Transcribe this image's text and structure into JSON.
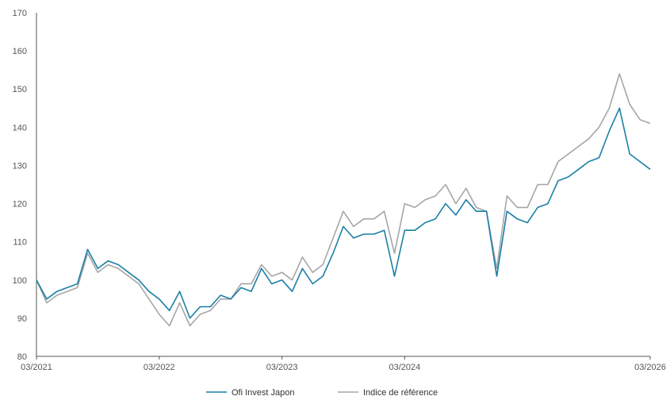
{
  "chart_data": {
    "type": "line",
    "title": "",
    "xlabel": "",
    "ylabel": "",
    "ylim": [
      80,
      170
    ],
    "yticks": [
      80,
      90,
      100,
      110,
      120,
      130,
      140,
      150,
      160,
      170
    ],
    "xticks": [
      "03/2021",
      "03/2022",
      "03/2023",
      "03/2024",
      "03/2026"
    ],
    "xlim": [
      "2021-03",
      "2026-03"
    ],
    "grid": false,
    "legend_position": "bottom",
    "colors": {
      "fund": "#1a7fa6",
      "benchmark": "#a6a6a6",
      "axis": "#555555"
    },
    "series": [
      {
        "name": "Ofi Invest Japon",
        "x": [
          "2021-03",
          "2021-04",
          "2021-05",
          "2021-06",
          "2021-07",
          "2021-08",
          "2021-09",
          "2021-10",
          "2021-11",
          "2021-12",
          "2022-01",
          "2022-02",
          "2022-03",
          "2022-04",
          "2022-05",
          "2022-06",
          "2022-07",
          "2022-08",
          "2022-09",
          "2022-10",
          "2022-11",
          "2022-12",
          "2023-01",
          "2023-02",
          "2023-03",
          "2023-04",
          "2023-05",
          "2023-06",
          "2023-07",
          "2023-08",
          "2023-09",
          "2023-10",
          "2023-11",
          "2023-12",
          "2024-01",
          "2024-02",
          "2024-03",
          "2024-04",
          "2024-05",
          "2024-06",
          "2024-07",
          "2024-08",
          "2024-09",
          "2024-10",
          "2024-11",
          "2024-12",
          "2025-01",
          "2025-02",
          "2025-03",
          "2025-04",
          "2025-05",
          "2025-06",
          "2025-07",
          "2025-08",
          "2025-09",
          "2025-10",
          "2025-11",
          "2025-12",
          "2026-01",
          "2026-02",
          "2026-03"
        ],
        "values": [
          100,
          95,
          97,
          98,
          99,
          108,
          103,
          105,
          104,
          102,
          100,
          97,
          95,
          92,
          97,
          90,
          93,
          93,
          96,
          95,
          98,
          97,
          103,
          99,
          100,
          97,
          103,
          99,
          101,
          107,
          114,
          111,
          112,
          112,
          113,
          101,
          113,
          113,
          115,
          116,
          120,
          117,
          121,
          118,
          118,
          101,
          118,
          116,
          115,
          119,
          120,
          126,
          127,
          129,
          131,
          132,
          139,
          145,
          133,
          131,
          129
        ]
      },
      {
        "name": "Indice de référence",
        "x": [
          "2021-03",
          "2021-04",
          "2021-05",
          "2021-06",
          "2021-07",
          "2021-08",
          "2021-09",
          "2021-10",
          "2021-11",
          "2021-12",
          "2022-01",
          "2022-02",
          "2022-03",
          "2022-04",
          "2022-05",
          "2022-06",
          "2022-07",
          "2022-08",
          "2022-09",
          "2022-10",
          "2022-11",
          "2022-12",
          "2023-01",
          "2023-02",
          "2023-03",
          "2023-04",
          "2023-05",
          "2023-06",
          "2023-07",
          "2023-08",
          "2023-09",
          "2023-10",
          "2023-11",
          "2023-12",
          "2024-01",
          "2024-02",
          "2024-03",
          "2024-04",
          "2024-05",
          "2024-06",
          "2024-07",
          "2024-08",
          "2024-09",
          "2024-10",
          "2024-11",
          "2024-12",
          "2025-01",
          "2025-02",
          "2025-03",
          "2025-04",
          "2025-05",
          "2025-06",
          "2025-07",
          "2025-08",
          "2025-09",
          "2025-10",
          "2025-11",
          "2025-12",
          "2026-01",
          "2026-02",
          "2026-03"
        ],
        "values": [
          100,
          94,
          96,
          97,
          98,
          107,
          102,
          104,
          103,
          101,
          99,
          95,
          91,
          88,
          94,
          88,
          91,
          92,
          95,
          95,
          99,
          99,
          104,
          101,
          102,
          100,
          106,
          102,
          104,
          111,
          118,
          114,
          116,
          116,
          118,
          107,
          120,
          119,
          121,
          122,
          125,
          120,
          124,
          119,
          118,
          103,
          122,
          119,
          119,
          125,
          125,
          131,
          133,
          135,
          137,
          140,
          145,
          154,
          146,
          142,
          141
        ]
      }
    ]
  }
}
